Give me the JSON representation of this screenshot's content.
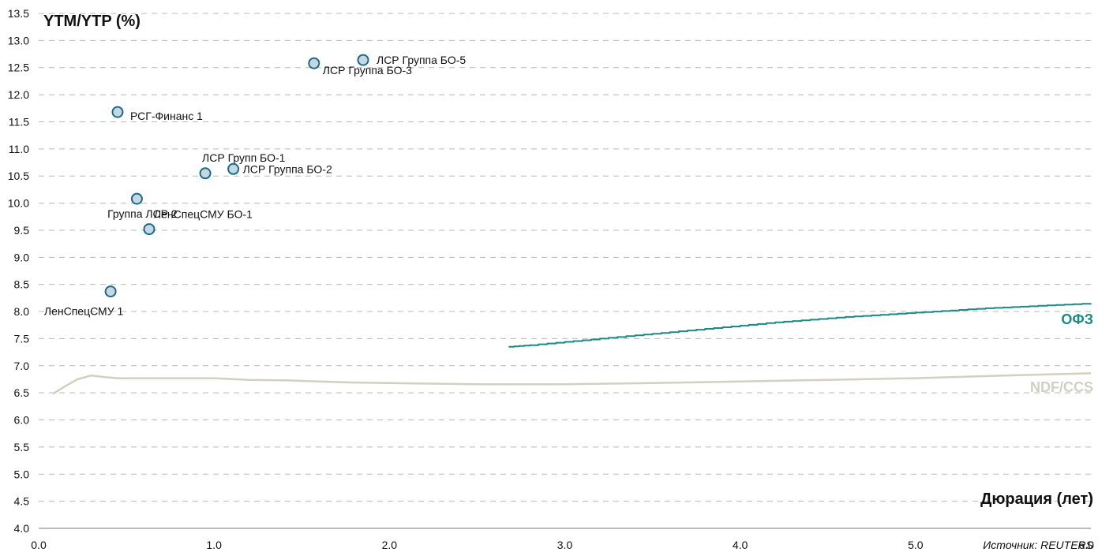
{
  "chart_data": {
    "type": "scatter",
    "ylabel": "YTM/YTP (%)",
    "xlabel": "Дюрация (лет)",
    "source": "Источник: REUTERS",
    "xlim": [
      0.0,
      6.0
    ],
    "ylim": [
      4.0,
      13.5
    ],
    "x_ticks": [
      "0.0",
      "1.0",
      "2.0",
      "3.0",
      "4.0",
      "5.0",
      "6.0"
    ],
    "y_ticks": [
      "4.0",
      "4.5",
      "5.0",
      "5.5",
      "6.0",
      "6.5",
      "7.0",
      "7.5",
      "8.0",
      "8.5",
      "9.0",
      "9.5",
      "10.0",
      "10.5",
      "11.0",
      "11.5",
      "12.0",
      "12.5",
      "13.0",
      "13.5"
    ],
    "grid": true,
    "points": [
      {
        "label": "ЛСР Группа БО-5",
        "x": 1.85,
        "y": 12.64
      },
      {
        "label": "ЛСР Группа БО-3",
        "x": 1.57,
        "y": 12.58
      },
      {
        "label": "РСГ-Финанс 1",
        "x": 0.45,
        "y": 11.68
      },
      {
        "label": "ЛСР Групп БО-1",
        "x": 0.95,
        "y": 10.55
      },
      {
        "label": "ЛСР Группа БО-2",
        "x": 1.11,
        "y": 10.63
      },
      {
        "label": "Группа ЛСР 2",
        "x": 0.56,
        "y": 10.08
      },
      {
        "label": "ЛенСпецСМУ БО-1",
        "x": 0.63,
        "y": 9.52
      },
      {
        "label": "ЛенСпецСМУ 1",
        "x": 0.41,
        "y": 8.37
      }
    ],
    "series": [
      {
        "name": "ОФЗ",
        "color": "#1a8a84",
        "x": [
          2.68,
          2.8,
          3.0,
          3.2,
          3.4,
          3.6,
          3.8,
          4.0,
          4.2,
          4.4,
          4.6,
          4.8,
          5.0,
          5.2,
          5.4,
          5.6,
          5.8,
          6.0
        ],
        "y": [
          7.35,
          7.38,
          7.44,
          7.5,
          7.56,
          7.62,
          7.68,
          7.74,
          7.8,
          7.85,
          7.9,
          7.94,
          7.98,
          8.02,
          8.06,
          8.09,
          8.12,
          8.15
        ]
      },
      {
        "name": "NDF/CCS",
        "color": "#d2d0c2",
        "x": [
          0.08,
          0.15,
          0.22,
          0.3,
          0.38,
          0.45,
          0.6,
          0.8,
          1.0,
          1.2,
          1.4,
          1.6,
          1.8,
          2.0,
          2.5,
          3.0,
          3.5,
          4.0,
          4.5,
          5.0,
          5.5,
          6.0
        ],
        "y": [
          6.48,
          6.62,
          6.75,
          6.82,
          6.79,
          6.77,
          6.77,
          6.77,
          6.77,
          6.74,
          6.73,
          6.71,
          6.69,
          6.68,
          6.66,
          6.66,
          6.68,
          6.71,
          6.74,
          6.77,
          6.82,
          6.86
        ]
      }
    ],
    "marker": {
      "fill": "#c7d7df",
      "stroke": "#1c6a8a"
    },
    "grid_color": "#b8b8b8"
  }
}
